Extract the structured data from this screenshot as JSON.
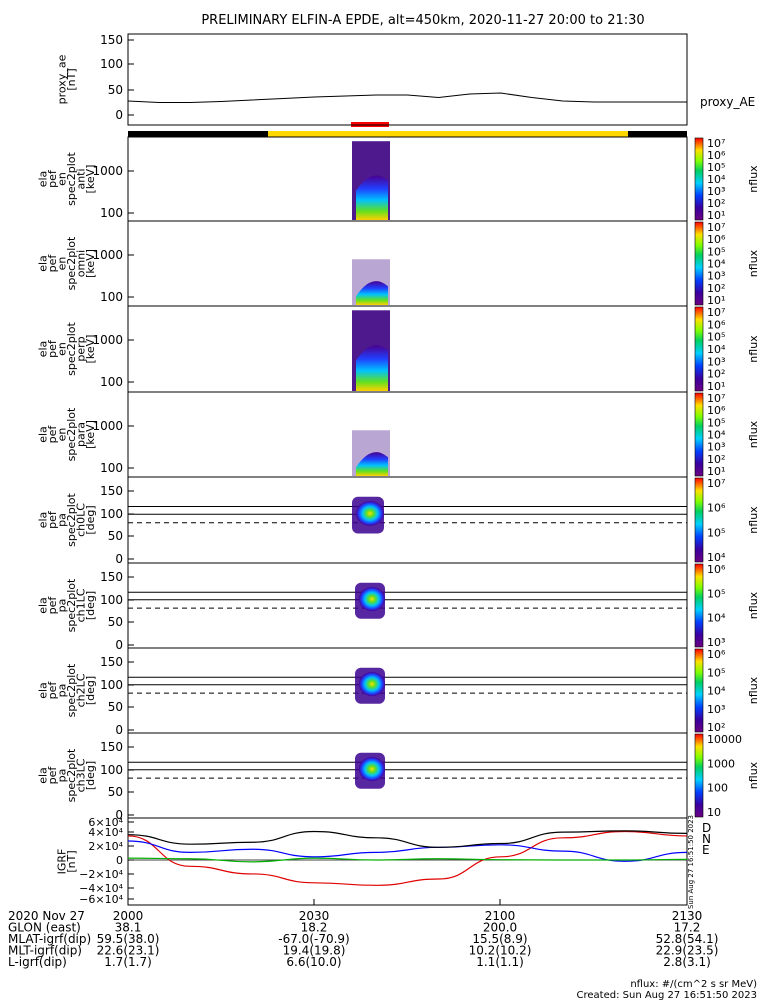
{
  "title": "PRELIMINARY ELFIN-A EPDE, alt=450km, 2020-11-27 20:00 to 21:30",
  "panels": [
    {
      "id": "proxy_ae",
      "ylabel": [
        "proxy_ae",
        "[nT]"
      ],
      "ticks": [
        "150",
        "100",
        "50",
        "0"
      ],
      "right_label": "proxy_AE"
    },
    {
      "id": "ant",
      "ylabel": [
        "ela",
        "pef",
        "en",
        "spec2plot",
        "anti",
        "[keV]"
      ],
      "ticks": [
        "1000",
        "100"
      ],
      "cbar_ticks": [
        "10⁷",
        "10⁶",
        "10⁵",
        "10⁴",
        "10³",
        "10²",
        "10¹"
      ],
      "cbar_label": "nflux"
    },
    {
      "id": "omni",
      "ylabel": [
        "ela",
        "pef",
        "en",
        "spec2plot",
        "omni",
        "[keV]"
      ],
      "ticks": [
        "1000",
        "100"
      ],
      "cbar_ticks": [
        "10⁷",
        "10⁶",
        "10⁵",
        "10⁴",
        "10³",
        "10²",
        "10¹"
      ],
      "cbar_label": "nflux"
    },
    {
      "id": "perp",
      "ylabel": [
        "ela",
        "pef",
        "en",
        "spec2plot",
        "perp",
        "[keV]"
      ],
      "ticks": [
        "1000",
        "100"
      ],
      "cbar_ticks": [
        "10⁷",
        "10⁶",
        "10⁵",
        "10⁴",
        "10³",
        "10²",
        "10¹"
      ],
      "cbar_label": "nflux"
    },
    {
      "id": "para",
      "ylabel": [
        "ela",
        "pef",
        "en",
        "spec2plot",
        "para",
        "[keV]"
      ],
      "ticks": [
        "1000",
        "100"
      ],
      "cbar_ticks": [
        "10⁷",
        "10⁶",
        "10⁵",
        "10⁴",
        "10³",
        "10²",
        "10¹"
      ],
      "cbar_label": "nflux"
    },
    {
      "id": "ch0",
      "ylabel": [
        "ela",
        "pef",
        "pa",
        "spec2plot",
        "ch0LC",
        "[deg]"
      ],
      "ticks": [
        "150",
        "100",
        "50",
        "0"
      ],
      "cbar_ticks": [
        "10⁷",
        "10⁶",
        "10⁵",
        "10⁴"
      ],
      "cbar_label": "nflux"
    },
    {
      "id": "ch1",
      "ylabel": [
        "ela",
        "pef",
        "pa",
        "spec2plot",
        "ch1LC",
        "[deg]"
      ],
      "ticks": [
        "150",
        "100",
        "50",
        "0"
      ],
      "cbar_ticks": [
        "10⁶",
        "10⁵",
        "10⁴",
        "10³"
      ],
      "cbar_label": "nflux"
    },
    {
      "id": "ch2",
      "ylabel": [
        "ela",
        "pef",
        "pa",
        "spec2plot",
        "ch2LC",
        "[deg]"
      ],
      "ticks": [
        "150",
        "100",
        "50",
        "0"
      ],
      "cbar_ticks": [
        "10⁶",
        "10⁵",
        "10⁴",
        "10³",
        "10²"
      ],
      "cbar_label": "nflux"
    },
    {
      "id": "ch3",
      "ylabel": [
        "ela",
        "pef",
        "pa",
        "spec2plot",
        "ch3LC",
        "[deg]"
      ],
      "ticks": [
        "150",
        "100",
        "50",
        "0"
      ],
      "cbar_ticks": [
        "10000",
        "1000",
        "100",
        "10"
      ],
      "cbar_label": "nflux"
    },
    {
      "id": "igrf",
      "ylabel": [
        "IGRF",
        "[nT]"
      ],
      "ticks": [
        "6×10⁴",
        "4×10⁴",
        "2×10⁴",
        "0",
        "−2×10⁴",
        "−4×10⁴",
        "−6×10⁴"
      ],
      "legend": [
        "D",
        "N",
        "E"
      ],
      "legend_colors": [
        "#e00000",
        "#0000ff",
        "#00b000"
      ]
    }
  ],
  "side_stamp": "Sun Aug 27 16:51:50 2023",
  "time_axis": {
    "rows": [
      {
        "label": "2020 Nov 27",
        "values": [
          "2000",
          "2030",
          "2100",
          "2130"
        ]
      },
      {
        "label": "GLON (east)",
        "values": [
          "38.1",
          "18.2",
          "200.0",
          "17.2"
        ]
      },
      {
        "label": "MLAT-igrf(dip)",
        "values": [
          "59.5(38.0)",
          "-67.0(-70.9)",
          "15.5(8.9)",
          "52.8(54.1)"
        ]
      },
      {
        "label": "MLT-igrf(dip)",
        "values": [
          "22.6(23.1)",
          "19.4(19.8)",
          "10.2(10.2)",
          "22.9(23.5)"
        ]
      },
      {
        "label": "L-igrf(dip)",
        "values": [
          "1.7(1.7)",
          "6.6(10.0)",
          "1.1(1.1)",
          "2.8(3.1)"
        ]
      }
    ]
  },
  "footer": {
    "units": "nflux: #/(cm^2 s sr MeV)",
    "created": "Created: Sun Aug 27 16:51:50 2023"
  },
  "chart_data": {
    "type": "line",
    "x_range": [
      "2020-11-27 20:00",
      "2020-11-27 21:30"
    ],
    "proxy_ae": {
      "ylim": [
        0,
        150
      ],
      "x": [
        "20:00",
        "20:05",
        "20:10",
        "20:15",
        "20:20",
        "20:25",
        "20:30",
        "20:35",
        "20:40",
        "20:45",
        "20:50",
        "20:55",
        "21:00",
        "21:05",
        "21:10",
        "21:15",
        "21:20",
        "21:25",
        "21:30"
      ],
      "values": [
        28,
        25,
        25,
        27,
        30,
        33,
        36,
        38,
        40,
        40,
        35,
        42,
        44,
        35,
        28,
        26,
        26,
        26,
        26
      ]
    },
    "igrf": {
      "ylim": [
        -60000,
        60000
      ],
      "x": [
        "20:00",
        "20:10",
        "20:20",
        "20:30",
        "20:40",
        "20:50",
        "21:00",
        "21:10",
        "21:20",
        "21:30"
      ],
      "series": [
        {
          "name": "D",
          "color": "#e00000",
          "values": [
            38000,
            -10000,
            -22000,
            -36000,
            -40000,
            -30000,
            5000,
            35000,
            45000,
            38000
          ]
        },
        {
          "name": "N",
          "color": "#0000ff",
          "values": [
            30000,
            12000,
            17000,
            5000,
            12000,
            20000,
            24000,
            14000,
            -2000,
            12000
          ]
        },
        {
          "name": "E",
          "color": "#00b000",
          "values": [
            3000,
            2000,
            -3000,
            3000,
            0,
            2000,
            500,
            0,
            0,
            1000
          ]
        },
        {
          "color": "#000000",
          "values": [
            40000,
            25000,
            28000,
            45000,
            35000,
            20000,
            26000,
            44000,
            46000,
            42000
          ]
        }
      ]
    },
    "pa_reference_lines": [
      90,
      110,
      68
    ]
  }
}
